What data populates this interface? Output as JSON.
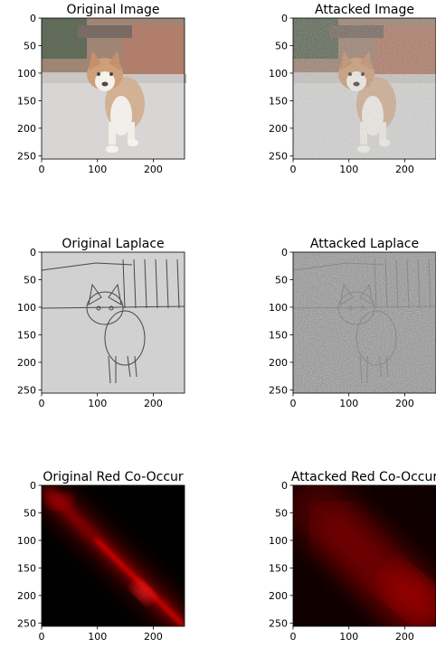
{
  "chart_data": [
    {
      "type": "image",
      "title": "Original Image",
      "x_ticks": [
        "0",
        "100",
        "200"
      ],
      "y_ticks": [
        "0",
        "50",
        "100",
        "150",
        "200",
        "250"
      ],
      "xlim": [
        0,
        256
      ],
      "ylim": [
        256,
        0
      ],
      "content": "photo"
    },
    {
      "type": "image",
      "title": "Attacked Image",
      "x_ticks": [
        "0",
        "100",
        "200"
      ],
      "y_ticks": [
        "0",
        "50",
        "100",
        "150",
        "200",
        "250"
      ],
      "xlim": [
        0,
        256
      ],
      "ylim": [
        256,
        0
      ],
      "content": "photo-noisy"
    },
    {
      "type": "image",
      "title": "Original Laplace",
      "x_ticks": [
        "0",
        "100",
        "200"
      ],
      "y_ticks": [
        "0",
        "50",
        "100",
        "150",
        "200",
        "250"
      ],
      "xlim": [
        0,
        256
      ],
      "ylim": [
        256,
        0
      ],
      "content": "edges"
    },
    {
      "type": "image",
      "title": "Attacked Laplace",
      "x_ticks": [
        "0",
        "100",
        "200"
      ],
      "y_ticks": [
        "0",
        "50",
        "100",
        "150",
        "200",
        "250"
      ],
      "xlim": [
        0,
        256
      ],
      "ylim": [
        256,
        0
      ],
      "content": "edges-noisy"
    },
    {
      "type": "heatmap",
      "title": "Original Red Co-Occur",
      "x_ticks": [
        "0",
        "100",
        "200"
      ],
      "y_ticks": [
        "0",
        "50",
        "100",
        "150",
        "200",
        "250"
      ],
      "xlim": [
        0,
        256
      ],
      "ylim": [
        256,
        0
      ],
      "colormap": "black-red",
      "pattern": "diagonal"
    },
    {
      "type": "heatmap",
      "title": "Attacked Red Co-Occur",
      "x_ticks": [
        "0",
        "100",
        "200"
      ],
      "y_ticks": [
        "0",
        "50",
        "100",
        "150",
        "200",
        "250"
      ],
      "xlim": [
        0,
        256
      ],
      "ylim": [
        256,
        0
      ],
      "colormap": "black-red",
      "pattern": "spread"
    }
  ]
}
